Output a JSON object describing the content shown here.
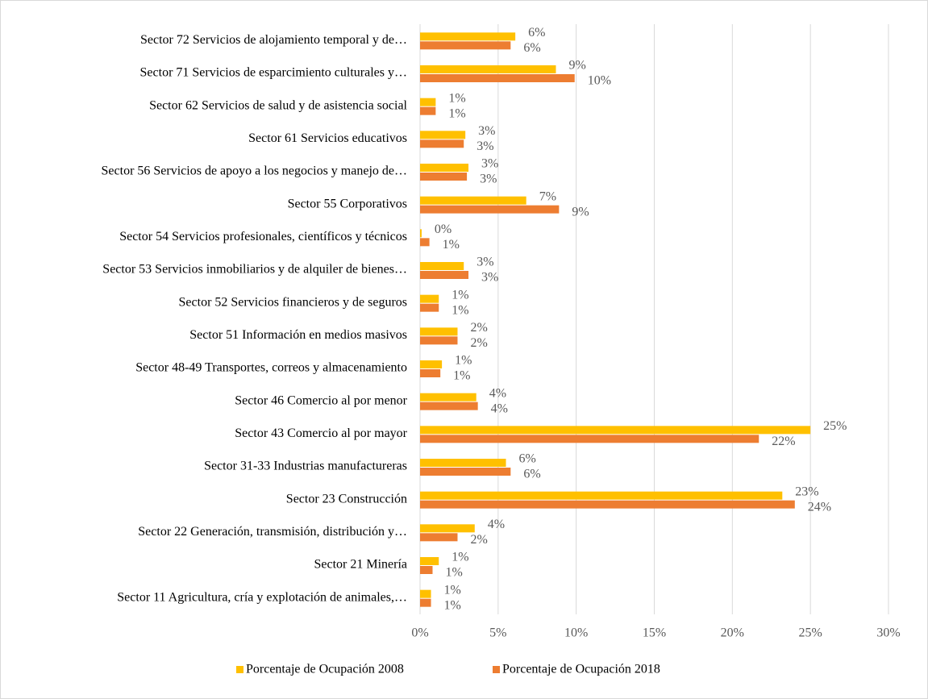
{
  "chart_data": {
    "type": "hbar",
    "categories": [
      "Sector 72 Servicios de alojamiento temporal y de…",
      "Sector 71 Servicios de esparcimiento culturales y…",
      "Sector 62 Servicios de salud y de asistencia social",
      "Sector 61 Servicios educativos",
      "Sector 56 Servicios de apoyo a los negocios y manejo de…",
      "Sector 55 Corporativos",
      "Sector 54 Servicios profesionales, científicos y técnicos",
      "Sector 53 Servicios inmobiliarios y de alquiler de bienes…",
      "Sector 52 Servicios financieros y de seguros",
      "Sector 51 Información en medios masivos",
      "Sector 48-49 Transportes, correos y almacenamiento",
      "Sector 46 Comercio al por menor",
      "Sector 43 Comercio al por mayor",
      "Sector 31-33 Industrias manufactureras",
      "Sector 23 Construcción",
      "Sector 22 Generación, transmisión, distribución y…",
      "Sector 21 Minería",
      "Sector 11 Agricultura, cría y explotación de animales,…"
    ],
    "series": [
      {
        "name": "Porcentaje de Ocupación 2008",
        "color": "#FFC000",
        "values": [
          6.1,
          8.7,
          1.0,
          2.9,
          3.1,
          6.8,
          0.1,
          2.8,
          1.2,
          2.4,
          1.4,
          3.6,
          25.0,
          5.5,
          23.2,
          3.5,
          1.2,
          0.7
        ],
        "value_labels": [
          "6%",
          "9%",
          "1%",
          "3%",
          "3%",
          "7%",
          "0%",
          "3%",
          "1%",
          "2%",
          "1%",
          "4%",
          "25%",
          "6%",
          "23%",
          "4%",
          "1%",
          "1%"
        ]
      },
      {
        "name": "Porcentaje de Ocupación 2018",
        "color": "#ED7D31",
        "values": [
          5.8,
          9.9,
          1.0,
          2.8,
          3.0,
          8.9,
          0.6,
          3.1,
          1.2,
          2.4,
          1.3,
          3.7,
          21.7,
          5.8,
          24.0,
          2.4,
          0.8,
          0.7
        ],
        "value_labels": [
          "6%",
          "10%",
          "1%",
          "3%",
          "3%",
          "9%",
          "1%",
          "3%",
          "1%",
          "2%",
          "1%",
          "4%",
          "22%",
          "6%",
          "24%",
          "2%",
          "1%",
          "1%"
        ]
      }
    ],
    "xlim": [
      0,
      30
    ],
    "xticks": [
      {
        "value": 0,
        "label": "0%"
      },
      {
        "value": 5,
        "label": "5%"
      },
      {
        "value": 10,
        "label": "10%"
      },
      {
        "value": 15,
        "label": "15%"
      },
      {
        "value": 20,
        "label": "20%"
      },
      {
        "value": 25,
        "label": "25%"
      },
      {
        "value": 30,
        "label": "30%"
      }
    ],
    "grid": true,
    "legend": "bottom"
  }
}
